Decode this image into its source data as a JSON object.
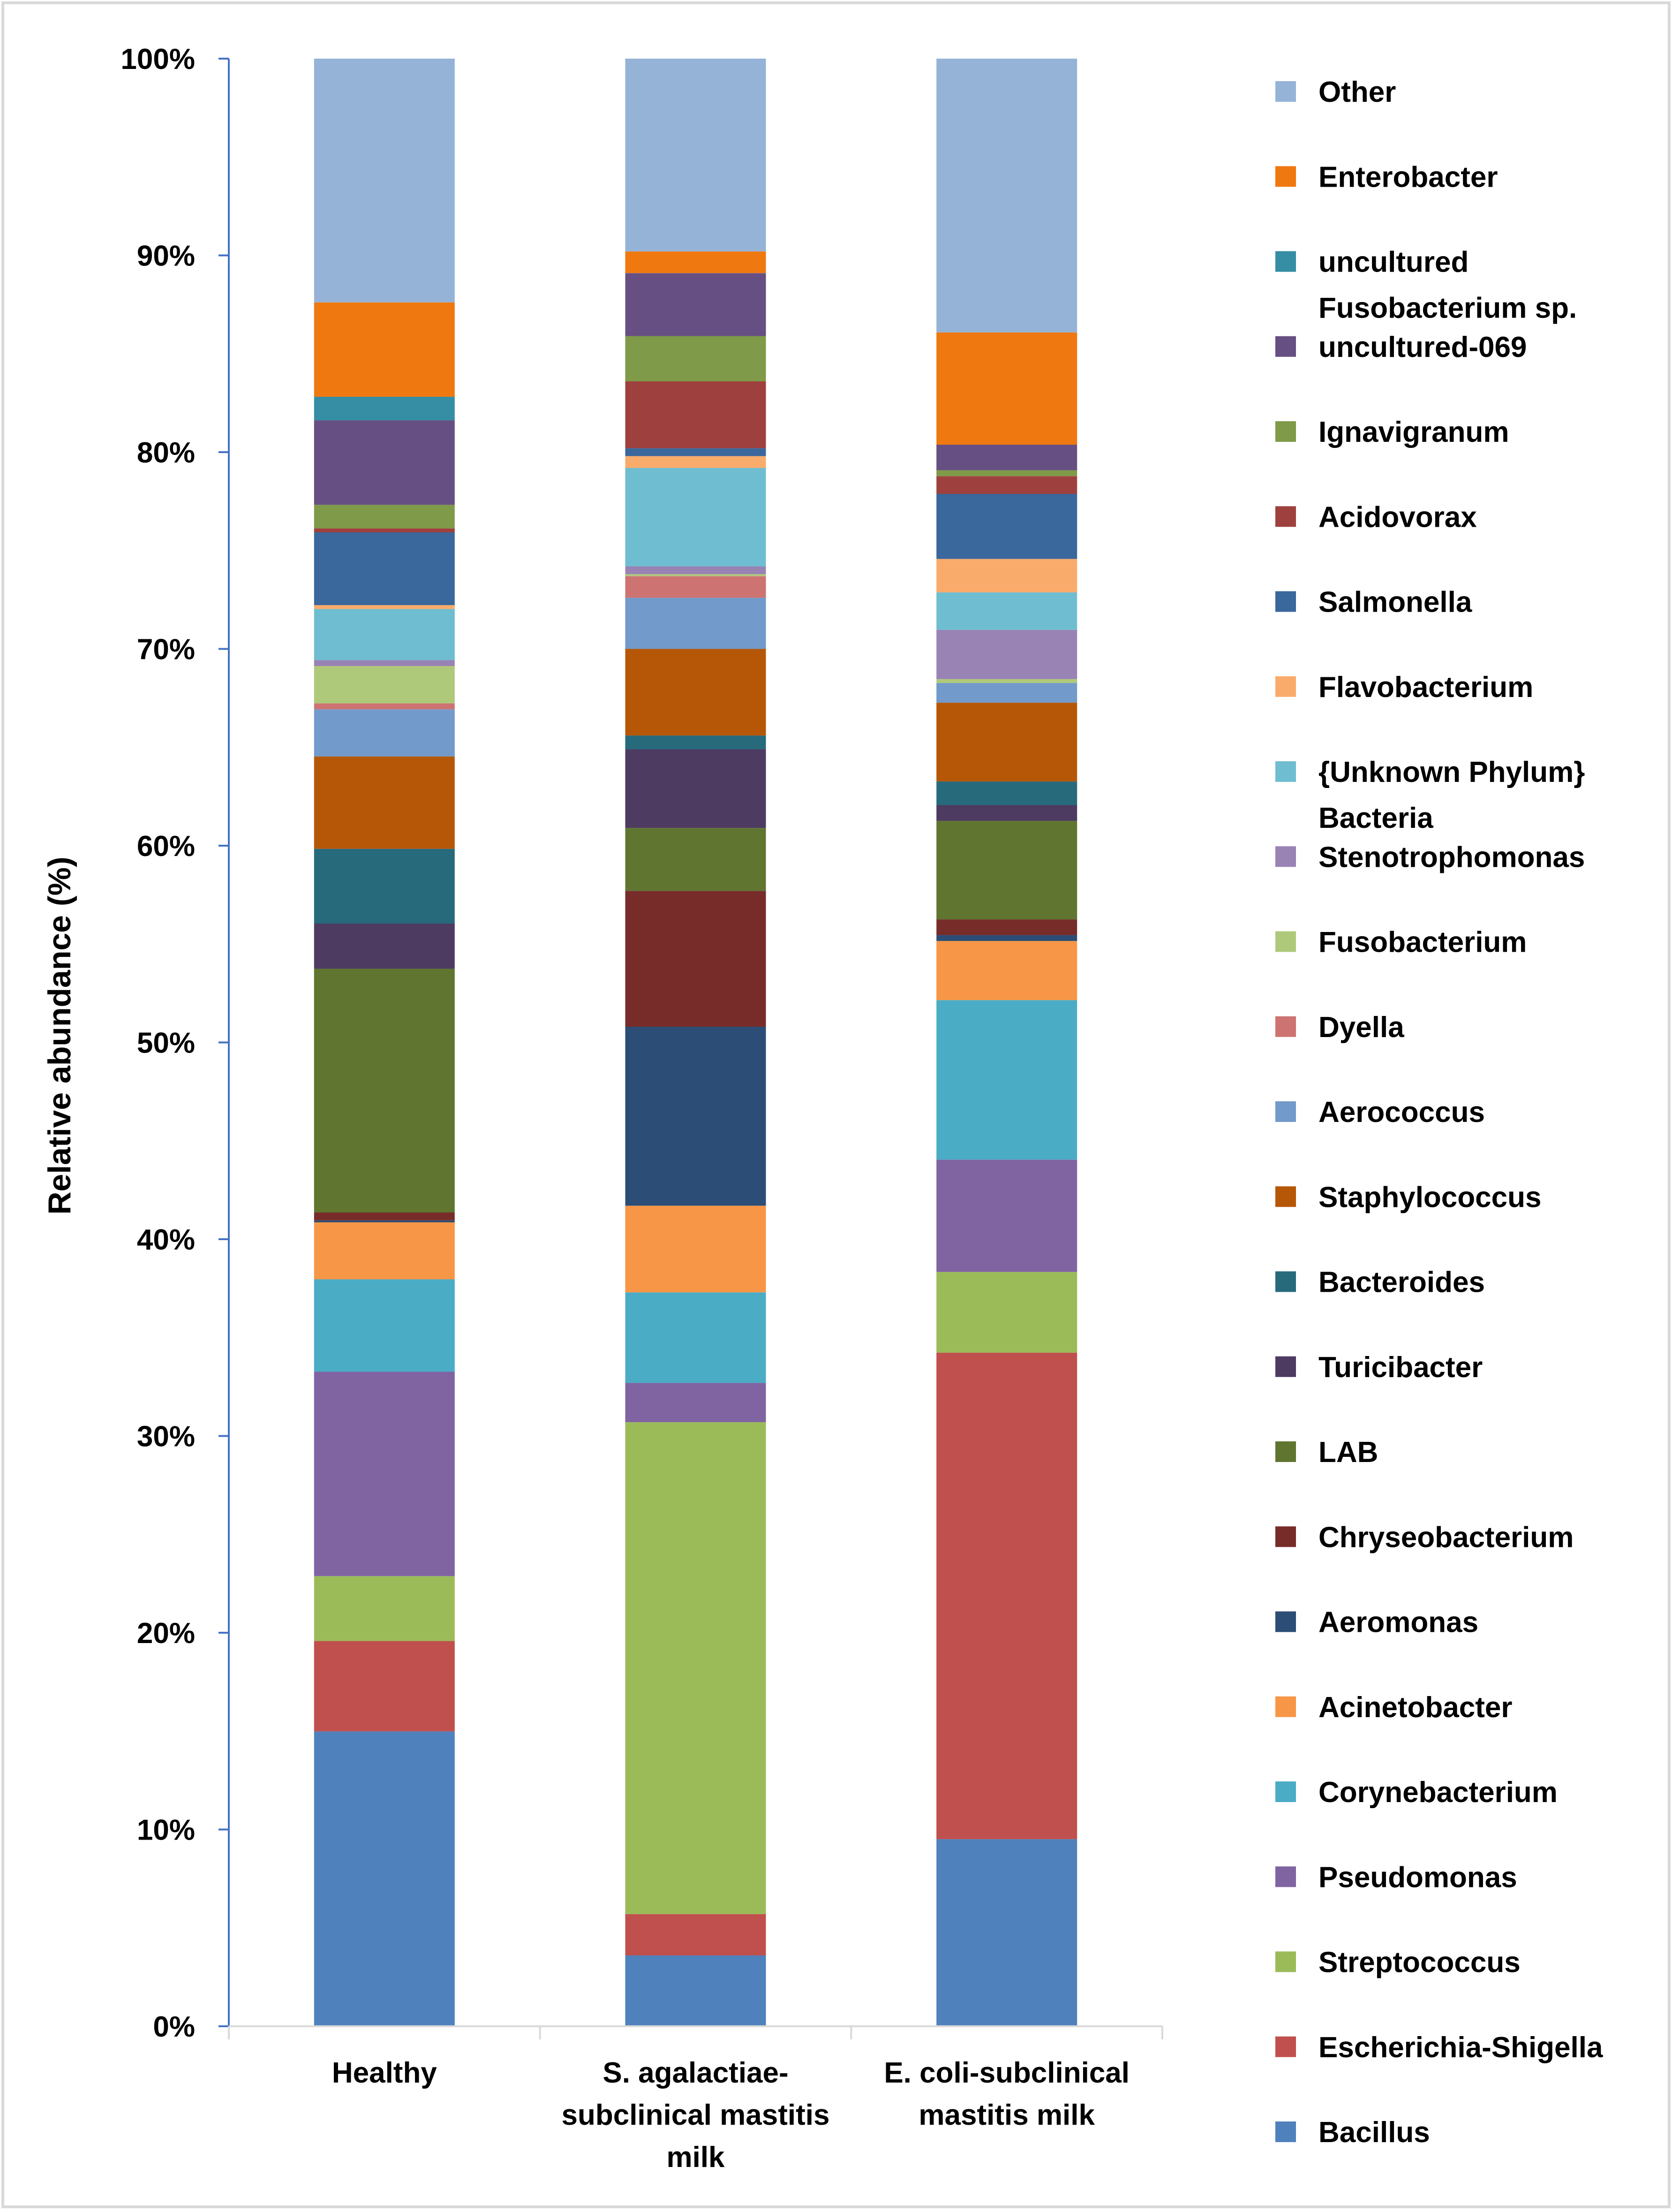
{
  "chart_data": {
    "type": "bar",
    "stacked": "percent",
    "title": "",
    "xlabel": "",
    "ylabel": "Relative abundance (%)",
    "ylim": [
      0,
      100
    ],
    "yticks": [
      "0%",
      "10%",
      "20%",
      "30%",
      "40%",
      "50%",
      "60%",
      "70%",
      "80%",
      "90%",
      "100%"
    ],
    "grid": false,
    "legend_position": "right",
    "categories": [
      [
        "Healthy"
      ],
      [
        "S. agalactiae-",
        "subclinical mastitis",
        "milk"
      ],
      [
        "E. coli-subclinical",
        "mastitis milk"
      ]
    ],
    "series": [
      {
        "name": "Bacillus",
        "color": "#4F81BD",
        "values": [
          15.0,
          3.6,
          9.5
        ]
      },
      {
        "name": "Escherichia-Shigella",
        "color": "#C0504D",
        "values": [
          4.6,
          2.1,
          24.7
        ]
      },
      {
        "name": "Streptococcus",
        "color": "#9BBB59",
        "values": [
          3.3,
          25.0,
          4.1
        ]
      },
      {
        "name": "Pseudomonas",
        "color": "#8064A2",
        "values": [
          10.4,
          2.0,
          5.7
        ]
      },
      {
        "name": "Corynebacterium",
        "color": "#4BACC6",
        "values": [
          4.7,
          4.6,
          8.1
        ]
      },
      {
        "name": "Acinetobacter",
        "color": "#F79646",
        "values": [
          2.9,
          4.4,
          3.0
        ]
      },
      {
        "name": "Aeromonas",
        "color": "#2C4D75",
        "values": [
          0.1,
          9.1,
          0.3
        ]
      },
      {
        "name": "Chryseobacterium",
        "color": "#772C2A",
        "values": [
          0.4,
          6.9,
          0.8
        ]
      },
      {
        "name": "LAB",
        "color": "#5F7530",
        "values": [
          12.4,
          3.2,
          5.0
        ]
      },
      {
        "name": "Turicibacter",
        "color": "#4D3B62",
        "values": [
          2.3,
          4.0,
          0.8
        ]
      },
      {
        "name": "Bacteroides",
        "color": "#276A7C",
        "values": [
          3.8,
          0.7,
          1.2
        ]
      },
      {
        "name": "Staphylococcus",
        "color": "#B65708",
        "values": [
          4.7,
          4.4,
          4.0
        ]
      },
      {
        "name": "Aerococcus",
        "color": "#729ACA",
        "values": [
          2.4,
          2.6,
          1.0
        ]
      },
      {
        "name": "Dyella",
        "color": "#CD7371",
        "values": [
          0.3,
          1.1,
          0.0
        ]
      },
      {
        "name": "Fusobacterium",
        "color": "#AFC97A",
        "values": [
          1.9,
          0.1,
          0.2
        ]
      },
      {
        "name": "Stenotrophomonas",
        "color": "#9983B5",
        "values": [
          0.3,
          0.4,
          2.5
        ]
      },
      {
        "name": "{Unknown Phylum} Bacteria",
        "color": "#6FBDD1",
        "values": [
          2.6,
          5.0,
          1.9
        ]
      },
      {
        "name": "Flavobacterium",
        "color": "#F9AB6B",
        "values": [
          0.2,
          0.6,
          1.7
        ]
      },
      {
        "name": "Salmonella",
        "color": "#3A679C",
        "values": [
          3.7,
          0.4,
          3.3
        ]
      },
      {
        "name": "Acidovorax",
        "color": "#9E413E",
        "values": [
          0.2,
          3.4,
          0.9
        ]
      },
      {
        "name": "Ignavigranum",
        "color": "#7F9A48",
        "values": [
          1.2,
          2.3,
          0.3
        ]
      },
      {
        "name": "uncultured-069",
        "color": "#664F82",
        "values": [
          4.3,
          3.2,
          1.3
        ]
      },
      {
        "name": "uncultured Fusobacterium sp.",
        "color": "#358EA3",
        "values": [
          1.2,
          0.0,
          0.0
        ]
      },
      {
        "name": "Enterobacter",
        "color": "#F07810",
        "values": [
          4.8,
          1.1,
          5.7
        ]
      },
      {
        "name": "Other",
        "color": "#95B3D7",
        "values": [
          12.4,
          9.8,
          13.9
        ]
      }
    ],
    "legend_labels": [
      [
        "Other"
      ],
      [
        "Enterobacter"
      ],
      [
        "uncultured",
        "Fusobacterium sp."
      ],
      [
        "uncultured-069"
      ],
      [
        "Ignavigranum"
      ],
      [
        "Acidovorax"
      ],
      [
        "Salmonella"
      ],
      [
        "Flavobacterium"
      ],
      [
        "{Unknown Phylum}",
        "Bacteria"
      ],
      [
        "Stenotrophomonas"
      ],
      [
        "Fusobacterium"
      ],
      [
        "Dyella"
      ],
      [
        "Aerococcus"
      ],
      [
        "Staphylococcus"
      ],
      [
        "Bacteroides"
      ],
      [
        "Turicibacter"
      ],
      [
        "LAB"
      ],
      [
        "Chryseobacterium"
      ],
      [
        "Aeromonas"
      ],
      [
        "Acinetobacter"
      ],
      [
        "Corynebacterium"
      ],
      [
        "Pseudomonas"
      ],
      [
        "Streptococcus"
      ],
      [
        "Escherichia-Shigella"
      ],
      [
        "Bacillus"
      ]
    ],
    "colors": {
      "axis": "#4472C4",
      "frame": "#D9D9D9",
      "text": "#000000"
    }
  }
}
